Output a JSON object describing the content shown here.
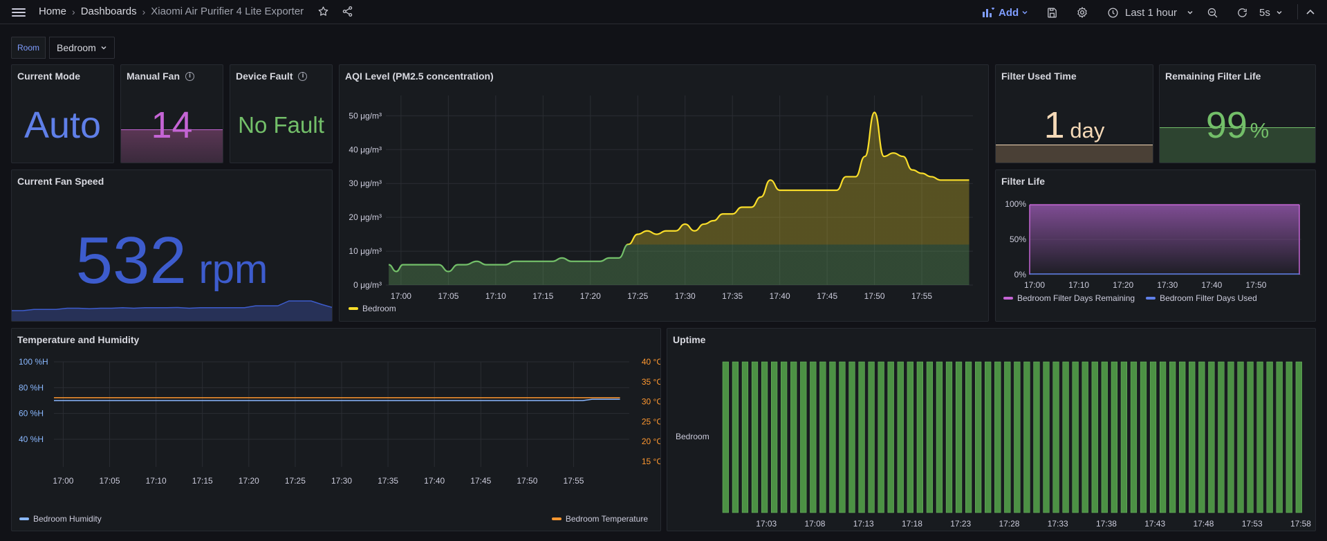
{
  "breadcrumb": {
    "home": "Home",
    "dashboards": "Dashboards",
    "current": "Xiaomi Air Purifier 4 Lite Exporter"
  },
  "toolbar": {
    "add": "Add",
    "time_range": "Last 1 hour",
    "refresh": "5s"
  },
  "variables": {
    "room_label": "Room",
    "room_value": "Bedroom"
  },
  "panels": {
    "current_mode": {
      "title": "Current Mode",
      "value": "Auto"
    },
    "manual_fan": {
      "title": "Manual Fan",
      "value": "14"
    },
    "device_fault": {
      "title": "Device Fault",
      "value": "No Fault"
    },
    "fan_speed": {
      "title": "Current Fan Speed",
      "value": "532",
      "unit": "rpm"
    },
    "aqi": {
      "title": "AQI Level (PM2.5 concentration)",
      "legend": "Bedroom"
    },
    "filter_used": {
      "title": "Filter Used Time",
      "value": "1",
      "unit": "day"
    },
    "remaining_life": {
      "title": "Remaining Filter Life",
      "value": "99",
      "unit": "%"
    },
    "filter_life": {
      "title": "Filter Life",
      "legend_remaining": "Bedroom Filter Days Remaining",
      "legend_used": "Bedroom Filter Days Used"
    },
    "temp_hum": {
      "title": "Temperature and Humidity",
      "legend_humidity": "Bedroom Humidity",
      "legend_temp": "Bedroom Temperature"
    },
    "uptime": {
      "title": "Uptime",
      "row_label": "Bedroom"
    }
  },
  "colors": {
    "blue": "#5f7fe8",
    "fan_blue": "#3d5ccd",
    "purple": "#c464d4",
    "green": "#73bf69",
    "yellow": "#fade2a",
    "orange": "#ff9830",
    "cream": "#f5d9b7",
    "humidity": "#8ab8ff"
  },
  "chart_data": [
    {
      "type": "area",
      "title": "AQI Level (PM2.5 concentration)",
      "x_ticks": [
        "17:00",
        "17:05",
        "17:10",
        "17:15",
        "17:20",
        "17:25",
        "17:30",
        "17:35",
        "17:40",
        "17:45",
        "17:50",
        "17:55"
      ],
      "y_ticks": [
        "0 μg/m³",
        "10 μg/m³",
        "20 μg/m³",
        "30 μg/m³",
        "40 μg/m³",
        "50 μg/m³"
      ],
      "ylim": [
        0,
        56
      ],
      "xlim_minutes": [
        -1.6,
        60.4
      ],
      "series": [
        {
          "name": "Bedroom",
          "x": [
            -1.3,
            -0.5,
            0.2,
            1,
            2.5,
            4,
            5,
            6,
            6.8,
            8,
            9,
            10,
            11,
            12,
            13,
            14,
            15,
            16,
            17,
            18,
            19,
            20,
            21,
            22,
            23,
            24,
            25,
            26,
            27,
            28,
            29,
            30,
            31,
            32,
            33,
            34,
            35,
            36,
            37,
            38,
            39,
            40,
            41,
            42,
            43,
            44,
            45,
            46,
            47,
            48,
            49,
            50,
            51,
            52,
            53,
            54,
            55,
            56,
            57,
            58,
            59,
            60
          ],
          "values": [
            6,
            4,
            6,
            6,
            6,
            6,
            4,
            6,
            6,
            7,
            6,
            6,
            6,
            7,
            7,
            7,
            7,
            7,
            8,
            7,
            7,
            7,
            7,
            8,
            8,
            12,
            15,
            16,
            15,
            16,
            16,
            18,
            16,
            18,
            19,
            21,
            21,
            23,
            23,
            26,
            31,
            28,
            28,
            28,
            28,
            28,
            28,
            28,
            32,
            32,
            38,
            51,
            38,
            39,
            38,
            34,
            33,
            32,
            31,
            31,
            31,
            31
          ]
        }
      ],
      "thresholds": [
        {
          "below": 12,
          "color": "green"
        },
        {
          "above": 12,
          "color": "yellow"
        }
      ]
    },
    {
      "type": "area",
      "title": "Filter Life",
      "x_ticks": [
        "17:00",
        "17:10",
        "17:20",
        "17:30",
        "17:40",
        "17:50"
      ],
      "y_ticks": [
        "0%",
        "50%",
        "100%"
      ],
      "ylim": [
        0,
        100
      ],
      "series": [
        {
          "name": "Bedroom Filter Days Remaining",
          "values": [
            99,
            99
          ]
        },
        {
          "name": "Bedroom Filter Days Used",
          "values": [
            1,
            1
          ]
        }
      ]
    },
    {
      "type": "line",
      "title": "Temperature and Humidity",
      "x_ticks": [
        "17:00",
        "17:05",
        "17:10",
        "17:15",
        "17:20",
        "17:25",
        "17:30",
        "17:35",
        "17:40",
        "17:45",
        "17:50",
        "17:55"
      ],
      "y_left_ticks": [
        "100 %H",
        "80 %H",
        "60 %H",
        "40 %H"
      ],
      "y_right_ticks": [
        "40 °C",
        "35 °C",
        "30 °C",
        "25 °C",
        "20 °C",
        "15 °C"
      ],
      "series": [
        {
          "name": "Bedroom Humidity",
          "axis": "left",
          "x": [
            -1,
            56,
            57,
            60
          ],
          "values": [
            70,
            70,
            71,
            71
          ]
        },
        {
          "name": "Bedroom Temperature",
          "axis": "right",
          "x": [
            -1,
            60
          ],
          "values": [
            31,
            31
          ]
        }
      ]
    },
    {
      "type": "bar",
      "title": "Uptime",
      "category": "Bedroom",
      "bar_count": 60,
      "x_ticks": [
        "17:03",
        "17:08",
        "17:13",
        "17:18",
        "17:23",
        "17:28",
        "17:33",
        "17:38",
        "17:43",
        "17:48",
        "17:53",
        "17:58"
      ]
    },
    {
      "type": "area",
      "title": "Current Fan Speed",
      "values": [
        520,
        520,
        525,
        525,
        525,
        530,
        530,
        528,
        530,
        530,
        532,
        530,
        532,
        532,
        532,
        533,
        530,
        532,
        532,
        532,
        532,
        532,
        540,
        540,
        540,
        560,
        560,
        560,
        545,
        532
      ]
    }
  ]
}
